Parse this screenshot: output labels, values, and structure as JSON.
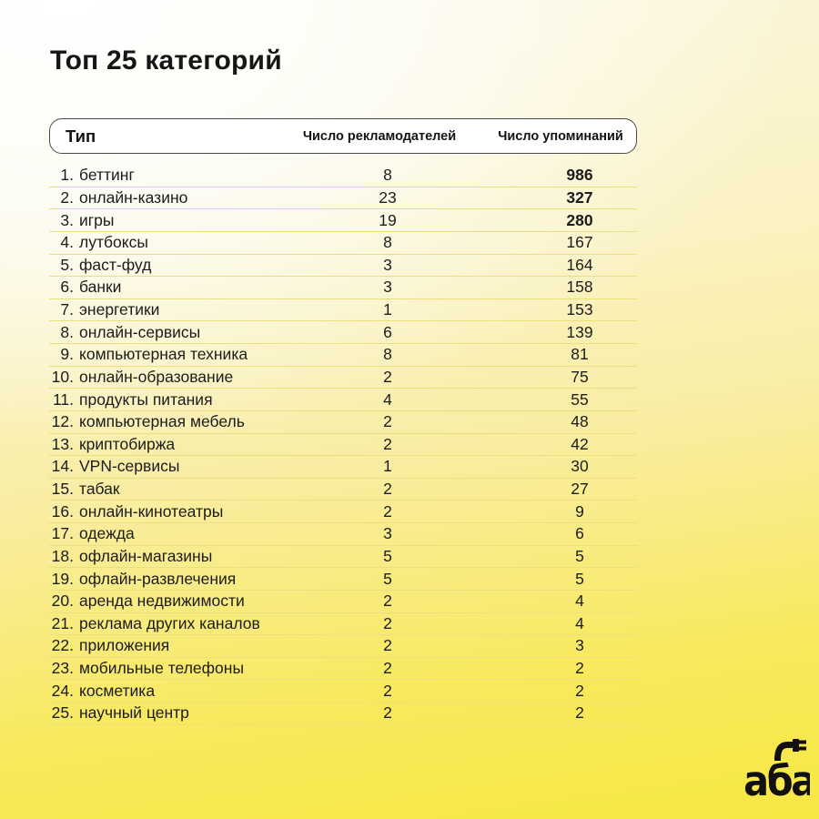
{
  "page": {
    "title": "Топ 25 категорий"
  },
  "header": {
    "type_label": "Тип",
    "advertisers_label": "Число рекламодателей",
    "mentions_label": "Число упоминаний"
  },
  "logo": {
    "text": "аба"
  },
  "colors": {
    "background_top": "#ffffff",
    "background_cream": "#fbf6e0",
    "background_bottom": "#f7e743",
    "text": "#161616",
    "separator_line": "#ece07e",
    "header_border": "#4a4a4a",
    "header_background": "#ffffff"
  },
  "chart_data": {
    "type": "table",
    "title": "Топ 25 категорий",
    "columns": [
      "Тип",
      "Число рекламодателей",
      "Число упоминаний"
    ],
    "bold_mention_ranks": [
      1,
      2,
      3
    ],
    "rows": [
      {
        "rank": 1,
        "category": "беттинг",
        "advertisers": 8,
        "mentions": 986
      },
      {
        "rank": 2,
        "category": "онлайн-казино",
        "advertisers": 23,
        "mentions": 327
      },
      {
        "rank": 3,
        "category": "игры",
        "advertisers": 19,
        "mentions": 280
      },
      {
        "rank": 4,
        "category": "лутбоксы",
        "advertisers": 8,
        "mentions": 167
      },
      {
        "rank": 5,
        "category": "фаст-фуд",
        "advertisers": 3,
        "mentions": 164
      },
      {
        "rank": 6,
        "category": "банки",
        "advertisers": 3,
        "mentions": 158
      },
      {
        "rank": 7,
        "category": "энергетики",
        "advertisers": 1,
        "mentions": 153
      },
      {
        "rank": 8,
        "category": "онлайн-сервисы",
        "advertisers": 6,
        "mentions": 139
      },
      {
        "rank": 9,
        "category": "компьютерная техника",
        "advertisers": 8,
        "mentions": 81
      },
      {
        "rank": 10,
        "category": "онлайн-образование",
        "advertisers": 2,
        "mentions": 75
      },
      {
        "rank": 11,
        "category": "продукты питания",
        "advertisers": 4,
        "mentions": 55
      },
      {
        "rank": 12,
        "category": "компьютерная мебель",
        "advertisers": 2,
        "mentions": 48
      },
      {
        "rank": 13,
        "category": "криптобиржа",
        "advertisers": 2,
        "mentions": 42
      },
      {
        "rank": 14,
        "category": "VPN-сервисы",
        "advertisers": 1,
        "mentions": 30
      },
      {
        "rank": 15,
        "category": "табак",
        "advertisers": 2,
        "mentions": 27
      },
      {
        "rank": 16,
        "category": "онлайн-кинотеатры",
        "advertisers": 2,
        "mentions": 9
      },
      {
        "rank": 17,
        "category": "одежда",
        "advertisers": 3,
        "mentions": 6
      },
      {
        "rank": 18,
        "category": "офлайн-магазины",
        "advertisers": 5,
        "mentions": 5
      },
      {
        "rank": 19,
        "category": "офлайн-развлечения",
        "advertisers": 5,
        "mentions": 5
      },
      {
        "rank": 20,
        "category": "аренда недвижимости",
        "advertisers": 2,
        "mentions": 4
      },
      {
        "rank": 21,
        "category": "реклама других каналов",
        "advertisers": 2,
        "mentions": 4
      },
      {
        "rank": 22,
        "category": "приложения",
        "advertisers": 2,
        "mentions": 3
      },
      {
        "rank": 23,
        "category": "мобильные телефоны",
        "advertisers": 2,
        "mentions": 2
      },
      {
        "rank": 24,
        "category": "косметика",
        "advertisers": 2,
        "mentions": 2
      },
      {
        "rank": 25,
        "category": "научный центр",
        "advertisers": 2,
        "mentions": 2
      }
    ]
  }
}
